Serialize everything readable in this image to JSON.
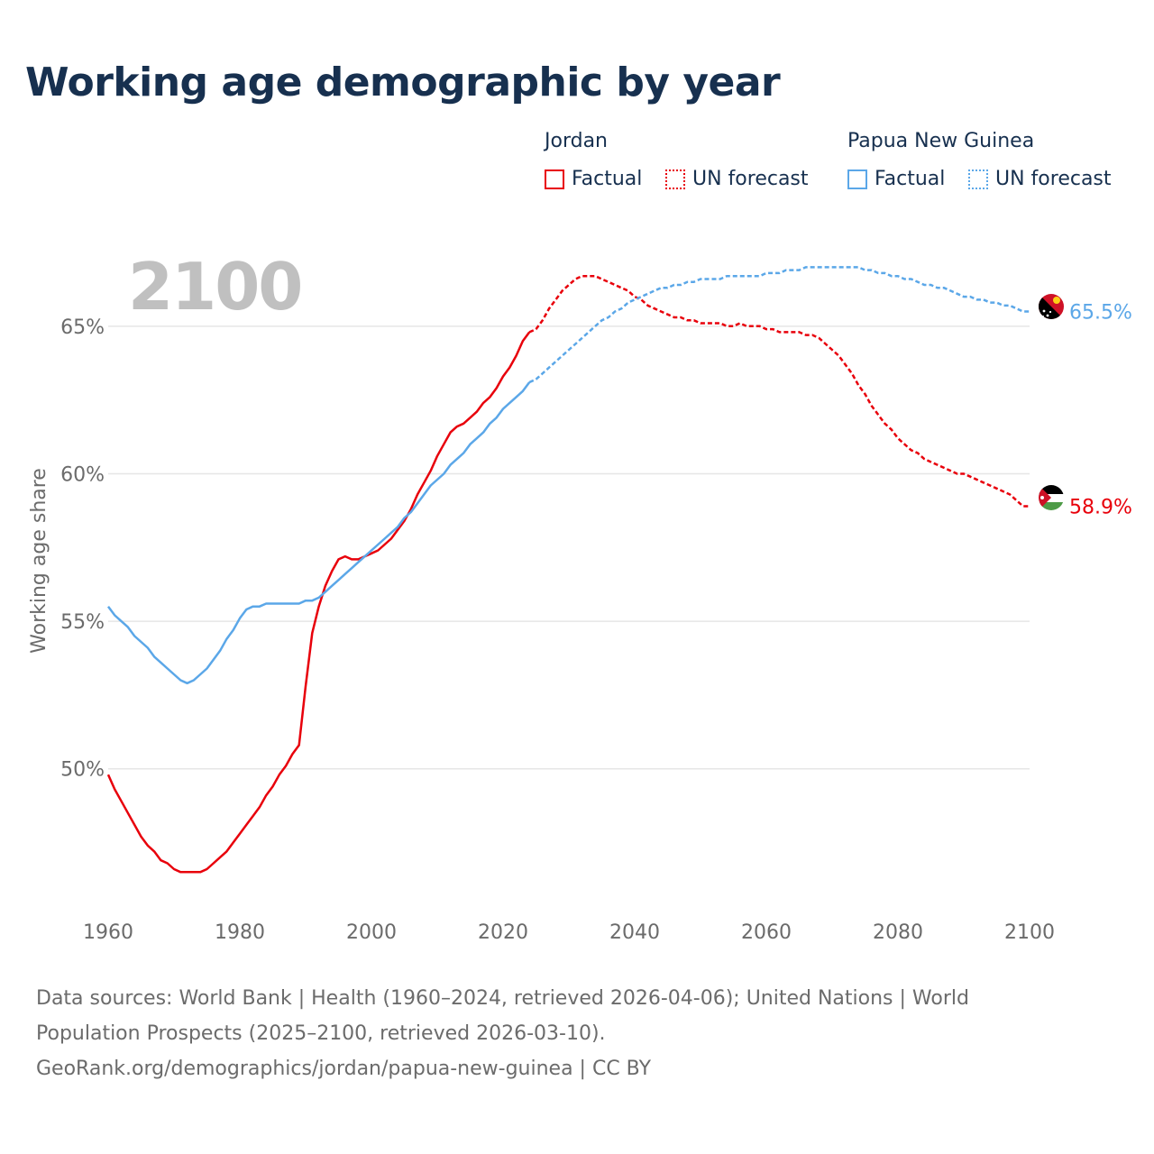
{
  "title": "Working age demographic by year",
  "legend": {
    "jordan": {
      "country": "Jordan",
      "factual": "Factual",
      "forecast": "UN forecast",
      "color": "#e8000b"
    },
    "png": {
      "country": "Papua New Guinea",
      "factual": "Factual",
      "forecast": "UN forecast",
      "color": "#5ba7e8"
    }
  },
  "year_label": "2100",
  "sources": {
    "line1": "Data sources: World Bank | Health (1960–2024, retrieved 2026-04-06); United Nations | World",
    "line2": "Population Prospects (2025–2100, retrieved 2026-03-10).",
    "line3": "GeoRank.org/demographics/jordan/papua-new-guinea | CC BY"
  },
  "chart_data": {
    "type": "line",
    "title": "Working age demographic by year",
    "xlabel": "",
    "ylabel": "Working age share",
    "xlim": [
      1960,
      2100
    ],
    "ylim": [
      45.5,
      67.5
    ],
    "xticks": [
      1960,
      1980,
      2000,
      2020,
      2040,
      2060,
      2080,
      2100
    ],
    "xtick_labels": [
      "1960",
      "1980",
      "2000",
      "2020",
      "2040",
      "2060",
      "2080",
      "2100"
    ],
    "yticks": [
      50,
      55,
      60,
      65
    ],
    "ytick_labels": [
      "50%",
      "55%",
      "60%",
      "65%"
    ],
    "grid": true,
    "factual_end_year": 2024,
    "series": [
      {
        "name": "Jordan",
        "color": "#e8000b",
        "end_label": "58.9%",
        "flag": "jordan-flag",
        "points": [
          [
            1960,
            49.8
          ],
          [
            1961,
            49.3
          ],
          [
            1962,
            48.9
          ],
          [
            1963,
            48.5
          ],
          [
            1964,
            48.1
          ],
          [
            1965,
            47.7
          ],
          [
            1966,
            47.4
          ],
          [
            1967,
            47.2
          ],
          [
            1968,
            46.9
          ],
          [
            1969,
            46.8
          ],
          [
            1970,
            46.6
          ],
          [
            1971,
            46.5
          ],
          [
            1972,
            46.5
          ],
          [
            1973,
            46.5
          ],
          [
            1974,
            46.5
          ],
          [
            1975,
            46.6
          ],
          [
            1976,
            46.8
          ],
          [
            1977,
            47.0
          ],
          [
            1978,
            47.2
          ],
          [
            1979,
            47.5
          ],
          [
            1980,
            47.8
          ],
          [
            1981,
            48.1
          ],
          [
            1982,
            48.4
          ],
          [
            1983,
            48.7
          ],
          [
            1984,
            49.1
          ],
          [
            1985,
            49.4
          ],
          [
            1986,
            49.8
          ],
          [
            1987,
            50.1
          ],
          [
            1988,
            50.5
          ],
          [
            1989,
            50.8
          ],
          [
            1990,
            52.8
          ],
          [
            1991,
            54.6
          ],
          [
            1992,
            55.5
          ],
          [
            1993,
            56.2
          ],
          [
            1994,
            56.7
          ],
          [
            1995,
            57.1
          ],
          [
            1996,
            57.2
          ],
          [
            1997,
            57.1
          ],
          [
            1998,
            57.1
          ],
          [
            1999,
            57.2
          ],
          [
            2000,
            57.3
          ],
          [
            2001,
            57.4
          ],
          [
            2002,
            57.6
          ],
          [
            2003,
            57.8
          ],
          [
            2004,
            58.1
          ],
          [
            2005,
            58.4
          ],
          [
            2006,
            58.8
          ],
          [
            2007,
            59.3
          ],
          [
            2008,
            59.7
          ],
          [
            2009,
            60.1
          ],
          [
            2010,
            60.6
          ],
          [
            2011,
            61.0
          ],
          [
            2012,
            61.4
          ],
          [
            2013,
            61.6
          ],
          [
            2014,
            61.7
          ],
          [
            2015,
            61.9
          ],
          [
            2016,
            62.1
          ],
          [
            2017,
            62.4
          ],
          [
            2018,
            62.6
          ],
          [
            2019,
            62.9
          ],
          [
            2020,
            63.3
          ],
          [
            2021,
            63.6
          ],
          [
            2022,
            64.0
          ],
          [
            2023,
            64.5
          ],
          [
            2024,
            64.8
          ],
          [
            2025,
            64.9
          ],
          [
            2026,
            65.2
          ],
          [
            2027,
            65.6
          ],
          [
            2028,
            65.9
          ],
          [
            2029,
            66.2
          ],
          [
            2030,
            66.4
          ],
          [
            2031,
            66.6
          ],
          [
            2032,
            66.7
          ],
          [
            2033,
            66.7
          ],
          [
            2034,
            66.7
          ],
          [
            2035,
            66.6
          ],
          [
            2036,
            66.5
          ],
          [
            2037,
            66.4
          ],
          [
            2038,
            66.3
          ],
          [
            2039,
            66.2
          ],
          [
            2040,
            66.0
          ],
          [
            2041,
            65.9
          ],
          [
            2042,
            65.7
          ],
          [
            2043,
            65.6
          ],
          [
            2044,
            65.5
          ],
          [
            2045,
            65.4
          ],
          [
            2046,
            65.3
          ],
          [
            2047,
            65.3
          ],
          [
            2048,
            65.2
          ],
          [
            2049,
            65.2
          ],
          [
            2050,
            65.1
          ],
          [
            2051,
            65.1
          ],
          [
            2052,
            65.1
          ],
          [
            2053,
            65.1
          ],
          [
            2054,
            65.0
          ],
          [
            2055,
            65.0
          ],
          [
            2056,
            65.1
          ],
          [
            2057,
            65.0
          ],
          [
            2058,
            65.0
          ],
          [
            2059,
            65.0
          ],
          [
            2060,
            64.9
          ],
          [
            2061,
            64.9
          ],
          [
            2062,
            64.8
          ],
          [
            2063,
            64.8
          ],
          [
            2064,
            64.8
          ],
          [
            2065,
            64.8
          ],
          [
            2066,
            64.7
          ],
          [
            2067,
            64.7
          ],
          [
            2068,
            64.6
          ],
          [
            2069,
            64.4
          ],
          [
            2070,
            64.2
          ],
          [
            2071,
            64.0
          ],
          [
            2072,
            63.7
          ],
          [
            2073,
            63.4
          ],
          [
            2074,
            63.0
          ],
          [
            2075,
            62.7
          ],
          [
            2076,
            62.3
          ],
          [
            2077,
            62.0
          ],
          [
            2078,
            61.7
          ],
          [
            2079,
            61.5
          ],
          [
            2080,
            61.2
          ],
          [
            2081,
            61.0
          ],
          [
            2082,
            60.8
          ],
          [
            2083,
            60.7
          ],
          [
            2084,
            60.5
          ],
          [
            2085,
            60.4
          ],
          [
            2086,
            60.3
          ],
          [
            2087,
            60.2
          ],
          [
            2088,
            60.1
          ],
          [
            2089,
            60.0
          ],
          [
            2090,
            60.0
          ],
          [
            2091,
            59.9
          ],
          [
            2092,
            59.8
          ],
          [
            2093,
            59.7
          ],
          [
            2094,
            59.6
          ],
          [
            2095,
            59.5
          ],
          [
            2096,
            59.4
          ],
          [
            2097,
            59.3
          ],
          [
            2098,
            59.1
          ],
          [
            2099,
            58.9
          ],
          [
            2100,
            58.9
          ]
        ]
      },
      {
        "name": "Papua New Guinea",
        "color": "#5ba7e8",
        "end_label": "65.5%",
        "flag": "papua-new-guinea-flag",
        "points": [
          [
            1960,
            55.5
          ],
          [
            1961,
            55.2
          ],
          [
            1962,
            55.0
          ],
          [
            1963,
            54.8
          ],
          [
            1964,
            54.5
          ],
          [
            1965,
            54.3
          ],
          [
            1966,
            54.1
          ],
          [
            1967,
            53.8
          ],
          [
            1968,
            53.6
          ],
          [
            1969,
            53.4
          ],
          [
            1970,
            53.2
          ],
          [
            1971,
            53.0
          ],
          [
            1972,
            52.9
          ],
          [
            1973,
            53.0
          ],
          [
            1974,
            53.2
          ],
          [
            1975,
            53.4
          ],
          [
            1976,
            53.7
          ],
          [
            1977,
            54.0
          ],
          [
            1978,
            54.4
          ],
          [
            1979,
            54.7
          ],
          [
            1980,
            55.1
          ],
          [
            1981,
            55.4
          ],
          [
            1982,
            55.5
          ],
          [
            1983,
            55.5
          ],
          [
            1984,
            55.6
          ],
          [
            1985,
            55.6
          ],
          [
            1986,
            55.6
          ],
          [
            1987,
            55.6
          ],
          [
            1988,
            55.6
          ],
          [
            1989,
            55.6
          ],
          [
            1990,
            55.7
          ],
          [
            1991,
            55.7
          ],
          [
            1992,
            55.8
          ],
          [
            1993,
            56.0
          ],
          [
            1994,
            56.2
          ],
          [
            1995,
            56.4
          ],
          [
            1996,
            56.6
          ],
          [
            1997,
            56.8
          ],
          [
            1998,
            57.0
          ],
          [
            1999,
            57.2
          ],
          [
            2000,
            57.4
          ],
          [
            2001,
            57.6
          ],
          [
            2002,
            57.8
          ],
          [
            2003,
            58.0
          ],
          [
            2004,
            58.2
          ],
          [
            2005,
            58.5
          ],
          [
            2006,
            58.7
          ],
          [
            2007,
            59.0
          ],
          [
            2008,
            59.3
          ],
          [
            2009,
            59.6
          ],
          [
            2010,
            59.8
          ],
          [
            2011,
            60.0
          ],
          [
            2012,
            60.3
          ],
          [
            2013,
            60.5
          ],
          [
            2014,
            60.7
          ],
          [
            2015,
            61.0
          ],
          [
            2016,
            61.2
          ],
          [
            2017,
            61.4
          ],
          [
            2018,
            61.7
          ],
          [
            2019,
            61.9
          ],
          [
            2020,
            62.2
          ],
          [
            2021,
            62.4
          ],
          [
            2022,
            62.6
          ],
          [
            2023,
            62.8
          ],
          [
            2024,
            63.1
          ],
          [
            2025,
            63.2
          ],
          [
            2026,
            63.4
          ],
          [
            2027,
            63.6
          ],
          [
            2028,
            63.8
          ],
          [
            2029,
            64.0
          ],
          [
            2030,
            64.2
          ],
          [
            2031,
            64.4
          ],
          [
            2032,
            64.6
          ],
          [
            2033,
            64.8
          ],
          [
            2034,
            65.0
          ],
          [
            2035,
            65.2
          ],
          [
            2036,
            65.3
          ],
          [
            2037,
            65.5
          ],
          [
            2038,
            65.6
          ],
          [
            2039,
            65.8
          ],
          [
            2040,
            65.9
          ],
          [
            2041,
            66.0
          ],
          [
            2042,
            66.1
          ],
          [
            2043,
            66.2
          ],
          [
            2044,
            66.3
          ],
          [
            2045,
            66.3
          ],
          [
            2046,
            66.4
          ],
          [
            2047,
            66.4
          ],
          [
            2048,
            66.5
          ],
          [
            2049,
            66.5
          ],
          [
            2050,
            66.6
          ],
          [
            2051,
            66.6
          ],
          [
            2052,
            66.6
          ],
          [
            2053,
            66.6
          ],
          [
            2054,
            66.7
          ],
          [
            2055,
            66.7
          ],
          [
            2056,
            66.7
          ],
          [
            2057,
            66.7
          ],
          [
            2058,
            66.7
          ],
          [
            2059,
            66.7
          ],
          [
            2060,
            66.8
          ],
          [
            2061,
            66.8
          ],
          [
            2062,
            66.8
          ],
          [
            2063,
            66.9
          ],
          [
            2064,
            66.9
          ],
          [
            2065,
            66.9
          ],
          [
            2066,
            67.0
          ],
          [
            2067,
            67.0
          ],
          [
            2068,
            67.0
          ],
          [
            2069,
            67.0
          ],
          [
            2070,
            67.0
          ],
          [
            2071,
            67.0
          ],
          [
            2072,
            67.0
          ],
          [
            2073,
            67.0
          ],
          [
            2074,
            67.0
          ],
          [
            2075,
            66.9
          ],
          [
            2076,
            66.9
          ],
          [
            2077,
            66.8
          ],
          [
            2078,
            66.8
          ],
          [
            2079,
            66.7
          ],
          [
            2080,
            66.7
          ],
          [
            2081,
            66.6
          ],
          [
            2082,
            66.6
          ],
          [
            2083,
            66.5
          ],
          [
            2084,
            66.4
          ],
          [
            2085,
            66.4
          ],
          [
            2086,
            66.3
          ],
          [
            2087,
            66.3
          ],
          [
            2088,
            66.2
          ],
          [
            2089,
            66.1
          ],
          [
            2090,
            66.0
          ],
          [
            2091,
            66.0
          ],
          [
            2092,
            65.9
          ],
          [
            2093,
            65.9
          ],
          [
            2094,
            65.8
          ],
          [
            2095,
            65.8
          ],
          [
            2096,
            65.7
          ],
          [
            2097,
            65.7
          ],
          [
            2098,
            65.6
          ],
          [
            2099,
            65.5
          ],
          [
            2100,
            65.5
          ]
        ]
      }
    ]
  }
}
